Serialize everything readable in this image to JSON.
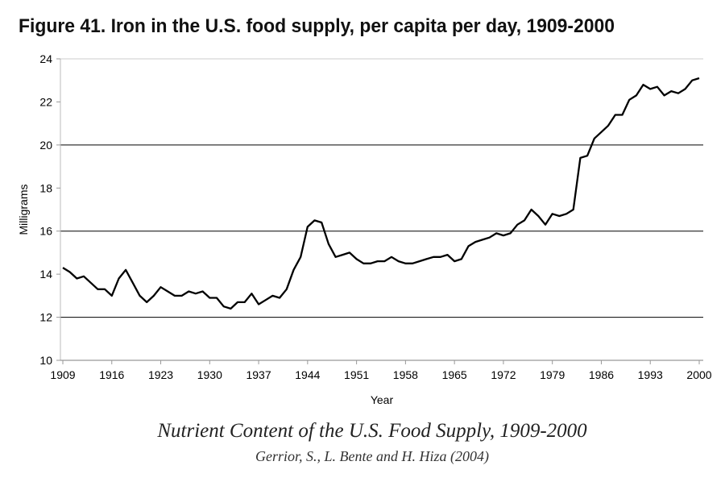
{
  "chart_data": {
    "type": "line",
    "title": "Figure 41. Iron in the U.S. food supply, per capita per day, 1909-2000",
    "xlabel": "Year",
    "ylabel": "Milligrams",
    "xlim": [
      1909,
      2000
    ],
    "ylim": [
      10,
      24
    ],
    "x_ticks": [
      "1909",
      "1916",
      "1923",
      "1930",
      "1937",
      "1944",
      "1951",
      "1958",
      "1965",
      "1972",
      "1979",
      "1986",
      "1993",
      "2000"
    ],
    "y_ticks": [
      "10",
      "12",
      "14",
      "16",
      "18",
      "20",
      "22",
      "24"
    ],
    "grid": "horizontal at 12, 16, 20",
    "legend": "none",
    "series": [
      {
        "name": "Iron",
        "x": [
          1909,
          1910,
          1911,
          1912,
          1913,
          1914,
          1915,
          1916,
          1917,
          1918,
          1919,
          1920,
          1921,
          1922,
          1923,
          1924,
          1925,
          1926,
          1927,
          1928,
          1929,
          1930,
          1931,
          1932,
          1933,
          1934,
          1935,
          1936,
          1937,
          1938,
          1939,
          1940,
          1941,
          1942,
          1943,
          1944,
          1945,
          1946,
          1947,
          1948,
          1949,
          1950,
          1951,
          1952,
          1953,
          1954,
          1955,
          1956,
          1957,
          1958,
          1959,
          1960,
          1961,
          1962,
          1963,
          1964,
          1965,
          1966,
          1967,
          1968,
          1969,
          1970,
          1971,
          1972,
          1973,
          1974,
          1975,
          1976,
          1977,
          1978,
          1979,
          1980,
          1981,
          1982,
          1983,
          1984,
          1985,
          1986,
          1987,
          1988,
          1989,
          1990,
          1991,
          1992,
          1993,
          1994,
          1995,
          1996,
          1997,
          1998,
          1999,
          2000
        ],
        "values": [
          14.3,
          14.1,
          13.8,
          13.9,
          13.6,
          13.3,
          13.3,
          13.0,
          13.8,
          14.2,
          13.6,
          13.0,
          12.7,
          13.0,
          13.4,
          13.2,
          13.0,
          13.0,
          13.2,
          13.1,
          13.2,
          12.9,
          12.9,
          12.5,
          12.4,
          12.7,
          12.7,
          13.1,
          12.6,
          12.8,
          13.0,
          12.9,
          13.3,
          14.2,
          14.8,
          16.2,
          16.5,
          16.4,
          15.4,
          14.8,
          14.9,
          15.0,
          14.7,
          14.5,
          14.5,
          14.6,
          14.6,
          14.8,
          14.6,
          14.5,
          14.5,
          14.6,
          14.7,
          14.8,
          14.8,
          14.9,
          14.6,
          14.7,
          15.3,
          15.5,
          15.6,
          15.7,
          15.9,
          15.8,
          15.9,
          16.3,
          16.5,
          17.0,
          16.7,
          16.3,
          16.8,
          16.7,
          16.8,
          17.0,
          19.4,
          19.5,
          20.3,
          20.6,
          20.9,
          21.4,
          21.4,
          22.1,
          22.3,
          22.8,
          22.6,
          22.7,
          22.3,
          22.5,
          22.4,
          22.6,
          23.0,
          23.1
        ]
      }
    ]
  },
  "caption": {
    "source_title": "Nutrient Content of the U.S. Food Supply, 1909-2000",
    "authors": "Gerrior, S., L. Bente and H. Hiza (2004)"
  },
  "colors": {
    "line": "#000000",
    "grid": "#000000",
    "axis": "#bbbbbb"
  }
}
